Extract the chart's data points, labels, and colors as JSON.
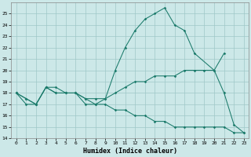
{
  "xlabel": "Humidex (Indice chaleur)",
  "ylim": [
    14,
    26
  ],
  "yticks": [
    14,
    15,
    16,
    17,
    18,
    19,
    20,
    21,
    22,
    23,
    24,
    25
  ],
  "color": "#1a7a6a",
  "bg_color": "#cce8e8",
  "grid_color": "#9fc8c8",
  "bell_x": [
    0,
    1,
    2,
    3,
    4,
    5,
    6,
    7,
    8,
    9,
    10,
    11,
    12,
    13,
    14,
    15,
    16,
    17,
    18,
    20,
    21,
    22,
    23
  ],
  "bell_y": [
    18,
    17,
    17,
    18.5,
    18,
    18,
    18,
    17,
    17,
    17.5,
    20,
    22,
    23.5,
    24.5,
    25,
    25.5,
    24,
    23.5,
    21.5,
    20,
    18,
    15.2,
    14.5
  ],
  "rise_x": [
    0,
    1,
    2,
    3,
    4,
    5,
    6,
    7,
    8,
    9,
    10,
    11,
    12,
    13,
    14,
    15,
    16,
    17,
    18,
    19,
    20,
    21
  ],
  "rise_y": [
    18,
    17.5,
    17,
    18.5,
    18.5,
    18,
    18,
    17.5,
    17.5,
    17.5,
    18,
    18.5,
    19,
    19,
    19.5,
    19.5,
    19.5,
    20,
    20,
    20,
    20,
    21.5
  ],
  "fall_x": [
    0,
    1,
    2,
    3,
    4,
    5,
    6,
    7,
    8,
    9,
    10,
    11,
    12,
    13,
    14,
    15,
    16,
    17,
    18,
    19,
    20,
    21,
    22,
    23
  ],
  "fall_y": [
    18,
    17.5,
    17,
    18.5,
    18,
    18,
    18,
    17.5,
    17,
    17,
    16.5,
    16.5,
    16,
    16,
    15.5,
    15.5,
    15,
    15,
    15,
    15,
    15,
    15,
    14.5,
    14.5
  ]
}
